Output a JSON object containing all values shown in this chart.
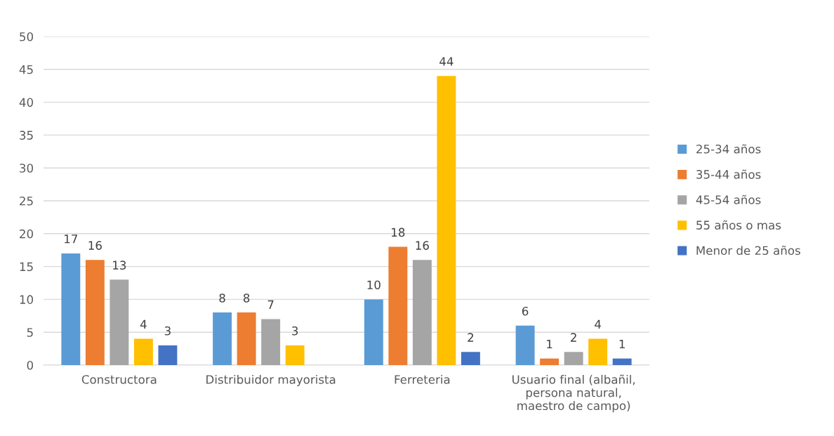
{
  "chart_data": {
    "type": "bar",
    "categories": [
      "Constructora",
      "Distribuidor mayorista",
      "Ferreteria",
      "Usuario final (albañil, persona natural, maestro de campo)"
    ],
    "series": [
      {
        "name": "25-34 años",
        "color": "#5b9bd5",
        "values": [
          17,
          8,
          10,
          6
        ]
      },
      {
        "name": "35-44 años",
        "color": "#ed7d31",
        "values": [
          16,
          8,
          18,
          1
        ]
      },
      {
        "name": "45-54 años",
        "color": "#a5a5a5",
        "values": [
          13,
          7,
          16,
          2
        ]
      },
      {
        "name": "55 años o mas",
        "color": "#ffc000",
        "values": [
          4,
          3,
          44,
          4
        ]
      },
      {
        "name": "Menor de 25 años",
        "color": "#4472c4",
        "values": [
          3,
          null,
          2,
          1
        ]
      }
    ],
    "ylim": [
      0,
      50
    ],
    "yticks": [
      0,
      5,
      10,
      15,
      20,
      25,
      30,
      35,
      40,
      45,
      50
    ],
    "grid": "y",
    "legend": "right",
    "data_labels": true
  }
}
